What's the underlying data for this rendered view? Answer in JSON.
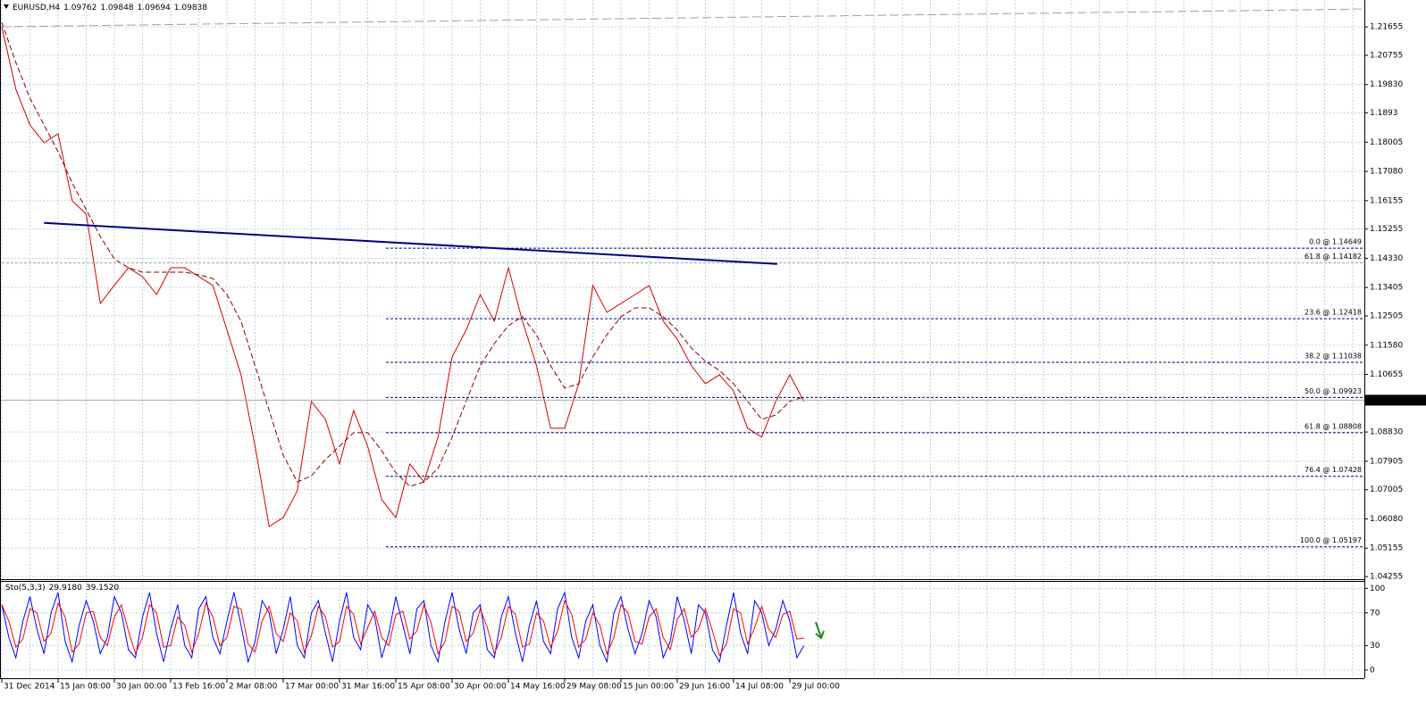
{
  "chart_data": [
    {
      "type": "line",
      "symbol": "EURUSD,H4",
      "ohlc": [
        1.09762,
        1.09848,
        1.09694,
        1.09838
      ],
      "last_price": 1.09838,
      "categories": [
        "31 Dec 2014",
        null,
        null,
        null,
        "15 Jan 08:00",
        null,
        null,
        null,
        "30 Jan 00:00",
        null,
        null,
        null,
        "13 Feb 16:00",
        null,
        null,
        null,
        "2 Mar 08:00",
        null,
        null,
        null,
        "17 Mar 00:00",
        null,
        null,
        null,
        "31 Mar 16:00",
        null,
        null,
        null,
        "15 Apr 08:00",
        null,
        null,
        null,
        "30 Apr 00:00",
        null,
        null,
        null,
        "14 May 16:00",
        null,
        null,
        null,
        "29 May 08:00",
        null,
        null,
        null,
        "15 Jun 00:00",
        null,
        null,
        null,
        "29 Jun 16:00",
        null,
        null,
        null,
        "14 Jul 08:00",
        null,
        null,
        null,
        "29 Jul 00:00",
        null
      ],
      "series": [
        {
          "color": "#d40000",
          "dashed": false,
          "values": [
            1.2166,
            1.1968,
            1.1855,
            1.1799,
            1.1827,
            1.1615,
            1.1573,
            1.129,
            1.1347,
            1.1403,
            1.1375,
            1.1318,
            1.1403,
            1.1403,
            1.1375,
            1.1347,
            1.1206,
            1.1064,
            1.0838,
            1.0584,
            1.0612,
            1.0697,
            1.098,
            1.0923,
            1.0782,
            1.0951,
            1.0838,
            1.0669,
            1.0612,
            1.0782,
            1.0725,
            1.0867,
            1.1121,
            1.1206,
            1.1318,
            1.1234,
            1.1403,
            1.1234,
            1.1093,
            1.0895,
            1.0895,
            1.1036,
            1.1347,
            1.1262,
            1.129,
            1.1318,
            1.1347,
            1.1234,
            1.1177,
            1.1093,
            1.1036,
            1.1064,
            1.1013,
            1.0895,
            1.0867,
            1.098,
            1.1064,
            1.098
          ]
        },
        {
          "color": "#8b0000",
          "dashed": true,
          "values": [
            1.218,
            1.2053,
            1.194,
            1.1855,
            1.177,
            1.1672,
            1.1587,
            1.1502,
            1.1431,
            1.1403,
            1.1389,
            1.1389,
            1.1389,
            1.1389,
            1.1381,
            1.1369,
            1.1318,
            1.1234,
            1.1093,
            1.0951,
            1.081,
            1.0725,
            1.0744,
            1.0796,
            1.0838,
            1.0881,
            1.0881,
            1.0824,
            1.0754,
            1.0711,
            1.0725,
            1.0768,
            1.0867,
            1.098,
            1.1093,
            1.1163,
            1.122,
            1.1248,
            1.1191,
            1.1093,
            1.1022,
            1.1036,
            1.1121,
            1.1191,
            1.1248,
            1.1276,
            1.1276,
            1.1248,
            1.1206,
            1.1149,
            1.1107,
            1.1078,
            1.1036,
            1.098,
            1.0923,
            1.0937,
            1.098,
            1.0994
          ]
        }
      ],
      "lines": [
        {
          "color": "#000080",
          "width": 2,
          "dashed": false,
          "x": [
            3,
            55.1
          ],
          "values": [
            1.1545,
            1.1415
          ]
        },
        {
          "color": "#a0a0a0",
          "width": 1,
          "dashed": true,
          "x": [
            0,
            96.8
          ],
          "values": [
            1.2166,
            1.2222
          ]
        }
      ],
      "fib_levels": [
        {
          "value": 1.14649,
          "label": "0.0 @ 1.14649",
          "color": "#000080",
          "x": 27.3
        },
        {
          "value": 1.14182,
          "label": "61.8 @ 1.14182",
          "color": "#a0a0a0",
          "x": 0
        },
        {
          "value": 1.12418,
          "label": "23.6 @ 1.12418",
          "color": "#000080",
          "x": 27.3
        },
        {
          "value": 1.11038,
          "label": "38.2 @ 1.11038",
          "color": "#000080",
          "x": 27.3
        },
        {
          "value": 1.09923,
          "label": "50.0 @ 1.09923",
          "color": "#000080",
          "x": 27.3
        },
        {
          "value": 1.08808,
          "label": "61.8 @ 1.08808",
          "color": "#000080",
          "x": 27.3
        },
        {
          "value": 1.07428,
          "label": "76.4 @ 1.07428",
          "color": "#000080",
          "x": 27.3
        },
        {
          "value": 1.05197,
          "label": "100.0 @ 1.05197",
          "color": "#000080",
          "x": 27.3
        }
      ],
      "ylim": [
        1.042,
        1.2245
      ],
      "yticks": [
        1.21655,
        1.20755,
        {
          "value": 1.1983,
          "label": "1.19830"
        },
        1.1893,
        1.18005,
        {
          "value": 1.1708,
          "label": "1.17080"
        },
        1.16155,
        1.15255,
        {
          "value": 1.1433,
          "label": "1.14330"
        },
        1.13405,
        1.12505,
        {
          "value": 1.1158,
          "label": "1.11580"
        },
        1.10655,
        {
          "value": 1.0883,
          "label": "1.08830"
        },
        1.07905,
        1.07005,
        {
          "value": 1.0608,
          "label": "1.06080"
        },
        1.05155,
        1.04255
      ],
      "grid": true
    },
    {
      "type": "line",
      "indicator": "Sto(5,3,3)",
      "readings": [
        {
          "value": 29.918,
          "label": "29.9180"
        },
        {
          "value": 39.152,
          "label": "39.1520"
        }
      ],
      "series": [
        {
          "color": "#0000ff",
          "values": [
            80,
            40,
            15,
            60,
            90,
            50,
            20,
            70,
            95,
            35,
            10,
            55,
            85,
            60,
            20,
            40,
            90,
            70,
            25,
            15,
            65,
            95,
            45,
            10,
            50,
            80,
            30,
            15,
            75,
            90,
            40,
            20,
            60,
            95,
            55,
            10,
            35,
            85,
            70,
            20,
            50,
            90,
            30,
            15,
            70,
            85,
            45,
            10,
            60,
            95,
            40,
            25,
            80,
            65,
            15,
            45,
            90,
            55,
            20,
            75,
            85,
            30,
            10,
            60,
            95,
            50,
            20,
            70,
            80,
            25,
            15,
            65,
            90,
            45,
            10,
            55,
            85,
            35,
            20,
            75,
            95,
            40,
            15,
            60,
            80,
            30,
            10,
            70,
            90,
            50,
            20,
            45,
            85,
            65,
            15,
            35,
            90,
            60,
            20,
            80,
            70,
            25,
            10,
            55,
            95,
            45,
            20,
            85,
            70,
            30,
            50,
            85,
            60,
            15,
            29.918
          ]
        },
        {
          "color": "#ff0000",
          "values": [
            80,
            60,
            28,
            38,
            75,
            70,
            35,
            45,
            82,
            65,
            22,
            32,
            70,
            72,
            40,
            30,
            65,
            80,
            48,
            20,
            40,
            80,
            70,
            28,
            30,
            65,
            55,
            22,
            45,
            82,
            65,
            30,
            40,
            78,
            75,
            32,
            22,
            60,
            78,
            45,
            35,
            70,
            60,
            22,
            42,
            78,
            65,
            28,
            35,
            78,
            68,
            32,
            52,
            72,
            40,
            30,
            68,
            72,
            38,
            48,
            80,
            58,
            20,
            35,
            78,
            72,
            35,
            45,
            75,
            52,
            20,
            40,
            78,
            68,
            28,
            32,
            70,
            60,
            28,
            48,
            85,
            68,
            28,
            38,
            70,
            55,
            20,
            40,
            80,
            70,
            35,
            32,
            65,
            75,
            40,
            25,
            62,
            75,
            40,
            50,
            75,
            48,
            18,
            32,
            75,
            70,
            32,
            52,
            78,
            50,
            40,
            68,
            72,
            38,
            39.152
          ]
        }
      ],
      "ylim": [
        -10,
        108
      ],
      "yticks": [
        100,
        70,
        30,
        0
      ],
      "grid": true
    }
  ]
}
